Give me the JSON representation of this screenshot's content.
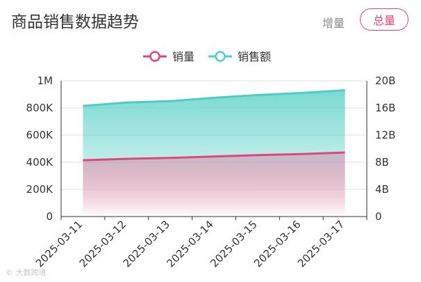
{
  "header": {
    "title": "商品销售数据趋势",
    "mode_options": {
      "incremental": "增量",
      "total": "总量"
    },
    "active_mode": "total"
  },
  "watermark": "© 大数跨境",
  "colors": {
    "sales_volume": "#e0457b",
    "sales_amount": "#4ecdc4",
    "axis": "#333333",
    "grid": "#e0e0e0",
    "text": "#333333"
  },
  "chart_data": {
    "type": "area",
    "legend": {
      "position": "top-center",
      "items": [
        "销量",
        "销售额"
      ]
    },
    "x": [
      "2025-03-11",
      "2025-03-12",
      "2025-03-13",
      "2025-03-14",
      "2025-03-15",
      "2025-03-16",
      "2025-03-17"
    ],
    "series": [
      {
        "name": "销量",
        "axis": "left",
        "values": [
          415000,
          425000,
          432000,
          442000,
          453000,
          460000,
          472000
        ]
      },
      {
        "name": "销售额",
        "axis": "right",
        "values": [
          16300000000,
          16800000000,
          17000000000,
          17500000000,
          17900000000,
          18200000000,
          18600000000
        ]
      }
    ],
    "y_left": {
      "ylim": [
        0,
        1000000
      ],
      "ticks": [
        "0",
        "200K",
        "400K",
        "600K",
        "800K",
        "1M"
      ]
    },
    "y_right": {
      "ylim": [
        0,
        20000000000
      ],
      "ticks": [
        "0",
        "4B",
        "8B",
        "12B",
        "16B",
        "20B"
      ]
    },
    "grid": true
  }
}
